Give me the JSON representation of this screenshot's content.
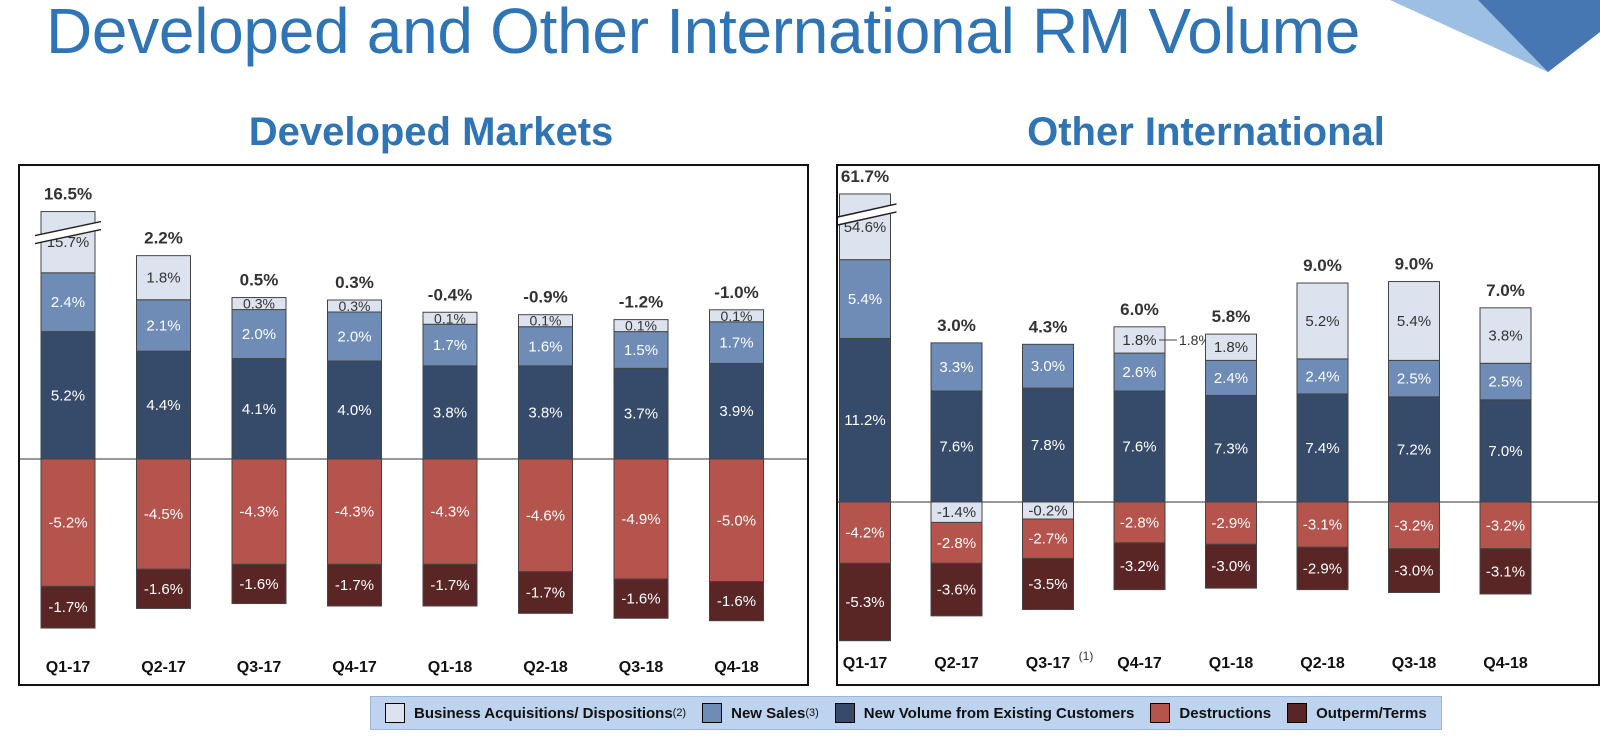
{
  "page": {
    "title": "Developed and Other International RM Volume",
    "colors": {
      "title": "#2f74b5",
      "corner_light": "#9cbfe3",
      "corner_dark": "#4777b3"
    }
  },
  "legend": {
    "items": [
      {
        "label": "Business Acquisitions/ Dispositions",
        "note": "(2)",
        "color": "#dce3ef"
      },
      {
        "label": "New Sales",
        "note": "(3)",
        "color": "#6e8cb6"
      },
      {
        "label": "New Volume from Existing Customers",
        "note": "",
        "color": "#364a6a"
      },
      {
        "label": "Destructions",
        "note": "",
        "color": "#b5534d"
      },
      {
        "label": "Outperm/Terms",
        "note": "",
        "color": "#5a2525"
      }
    ]
  },
  "chart_data": [
    {
      "type": "bar",
      "stacked": true,
      "title": "Developed Markets",
      "categories": [
        "Q1-17",
        "Q2-17",
        "Q3-17",
        "Q4-17",
        "Q1-18",
        "Q2-18",
        "Q3-18",
        "Q4-18"
      ],
      "totals": [
        "16.5%",
        "2.2%",
        "0.5%",
        "0.3%",
        "-0.4%",
        "-0.9%",
        "-1.2%",
        "-1.0%"
      ],
      "series": [
        {
          "name": "New Volume from Existing Customers",
          "values": [
            5.2,
            4.4,
            4.1,
            4.0,
            3.8,
            3.8,
            3.7,
            3.9
          ]
        },
        {
          "name": "New Sales",
          "values": [
            2.4,
            2.1,
            2.0,
            2.0,
            1.7,
            1.6,
            1.5,
            1.7
          ]
        },
        {
          "name": "Business Acquisitions/ Dispositions",
          "values": [
            15.7,
            1.8,
            0.3,
            0.3,
            0.1,
            0.1,
            0.1,
            0.1
          ]
        },
        {
          "name": "Destructions",
          "values": [
            -5.2,
            -4.5,
            -4.3,
            -4.3,
            -4.3,
            -4.6,
            -4.9,
            -5.0
          ]
        },
        {
          "name": "Outperm/Terms",
          "values": [
            -1.7,
            -1.6,
            -1.6,
            -1.7,
            -1.7,
            -1.7,
            -1.6,
            -1.6
          ]
        }
      ],
      "axis_break": {
        "category": "Q1-17",
        "series": "Business Acquisitions/ Dispositions",
        "shown_height": 2.5
      },
      "zero_line": true,
      "legend": "bottom"
    },
    {
      "type": "bar",
      "stacked": true,
      "title": "Other International",
      "categories": [
        "Q1-17",
        "Q2-17",
        "Q3-17",
        "Q4-17",
        "Q1-18",
        "Q2-18",
        "Q3-18",
        "Q4-18"
      ],
      "category_notes": [
        "",
        "",
        "(1)",
        "",
        "",
        "",
        "",
        ""
      ],
      "totals": [
        "61.7%",
        "3.0%",
        "4.3%",
        "6.0%",
        "5.8%",
        "9.0%",
        "9.0%",
        "7.0%"
      ],
      "series": [
        {
          "name": "New Volume from Existing Customers",
          "values": [
            11.2,
            7.6,
            7.8,
            7.6,
            7.3,
            7.4,
            7.2,
            7.0
          ]
        },
        {
          "name": "New Sales",
          "values": [
            5.4,
            3.3,
            3.0,
            2.6,
            2.4,
            2.4,
            2.5,
            2.5
          ]
        },
        {
          "name": "Business Acquisitions/ Dispositions",
          "values": [
            54.6,
            -1.4,
            -0.2,
            1.8,
            1.8,
            5.2,
            5.4,
            3.8
          ]
        },
        {
          "name": "Destructions",
          "values": [
            -4.2,
            -2.8,
            -2.7,
            -2.8,
            -2.9,
            -3.1,
            -3.2,
            -3.2
          ]
        },
        {
          "name": "Outperm/Terms",
          "values": [
            -5.3,
            -3.6,
            -3.5,
            -3.2,
            -3.0,
            -2.9,
            -3.0,
            -3.1
          ]
        }
      ],
      "axis_break": {
        "category": "Q1-17",
        "series": "Business Acquisitions/ Dispositions",
        "shown_height": 4.5
      },
      "outside_labels": {
        "Q4-17": "1.8%"
      },
      "zero_line": true,
      "legend": "bottom"
    }
  ]
}
